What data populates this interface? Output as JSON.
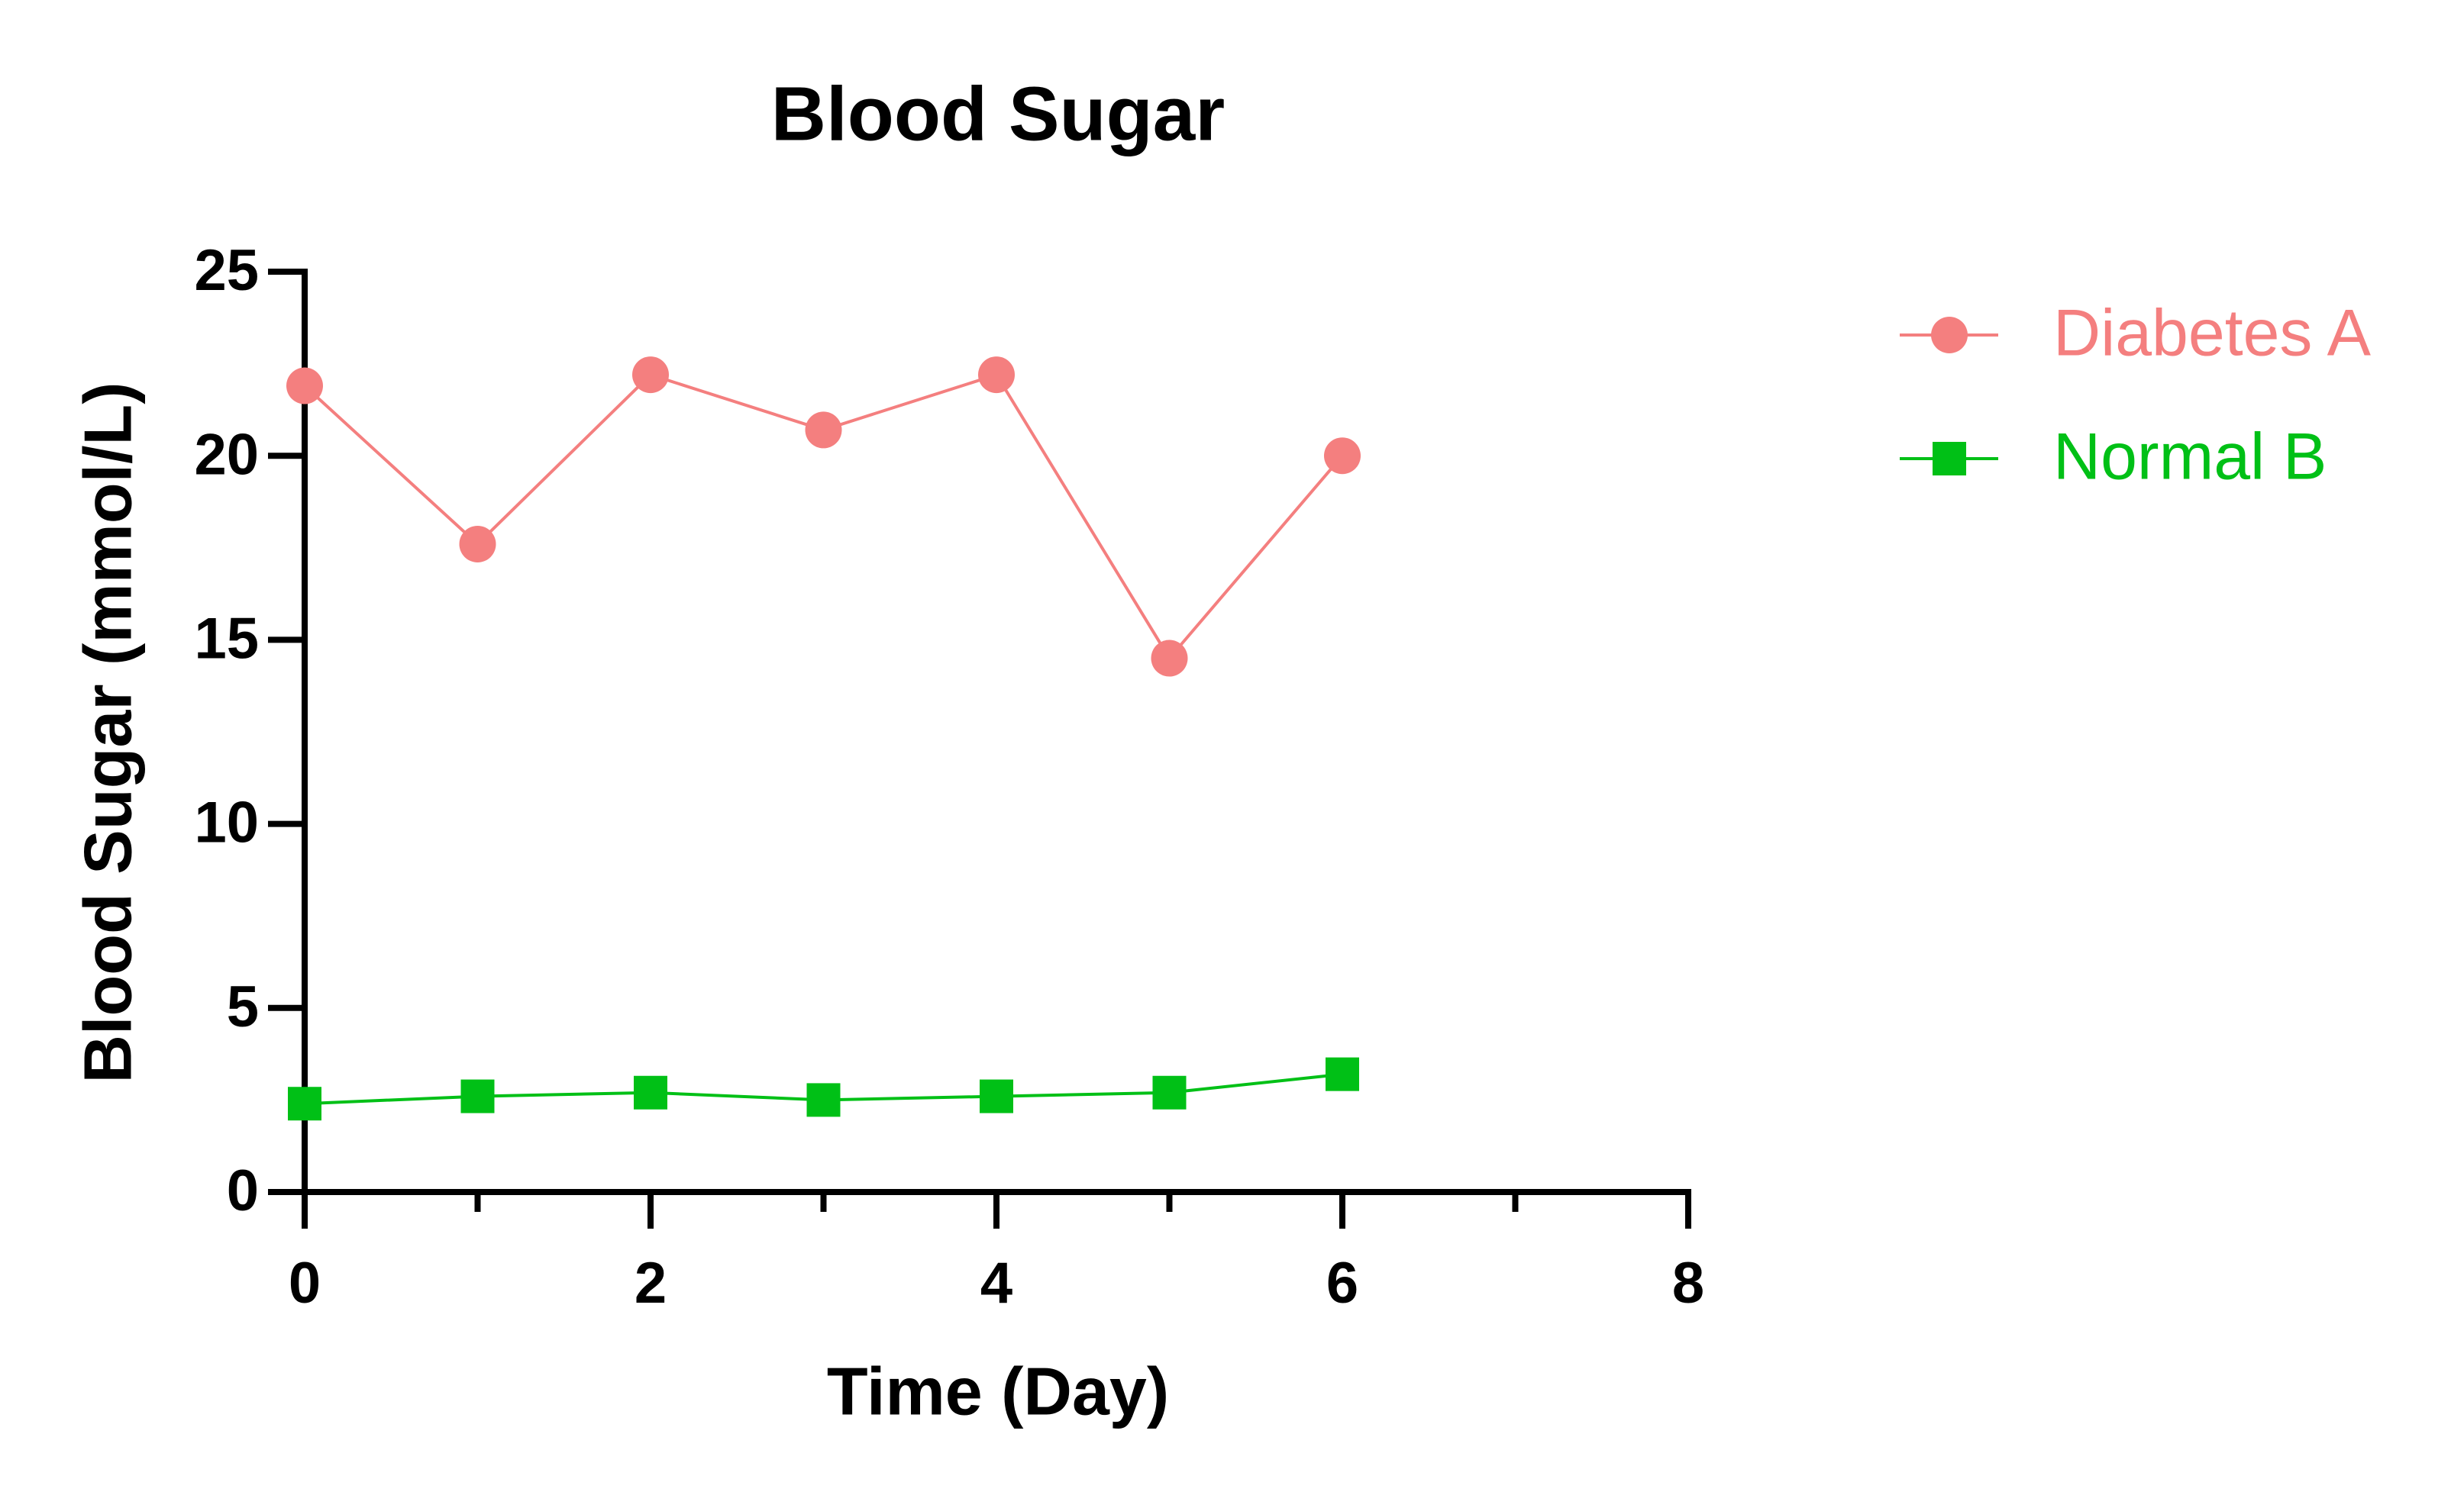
{
  "chart_data": {
    "type": "line",
    "title": "Blood Sugar",
    "x_label": "Time (Day)",
    "y_label": "Blood Sugar (mmol/L)",
    "x": [
      0,
      1,
      2,
      3,
      4,
      5,
      6
    ],
    "series": [
      {
        "name": "Diabetes A",
        "color": "#f47f7f",
        "marker": "circle",
        "values": [
          21.9,
          17.6,
          22.2,
          20.7,
          22.2,
          14.5,
          20.0
        ]
      },
      {
        "name": "Normal B",
        "color": "#00c016",
        "marker": "square",
        "values": [
          2.4,
          2.6,
          2.7,
          2.5,
          2.6,
          2.7,
          3.2
        ]
      }
    ],
    "xlim": [
      0,
      8
    ],
    "xticks": [
      0,
      2,
      4,
      6,
      8
    ],
    "xminorticks": [
      1,
      3,
      5,
      7
    ],
    "ylim": [
      0,
      25
    ],
    "yticks": [
      0,
      5,
      10,
      15,
      20,
      25
    ],
    "grid": false,
    "legend": "right"
  }
}
